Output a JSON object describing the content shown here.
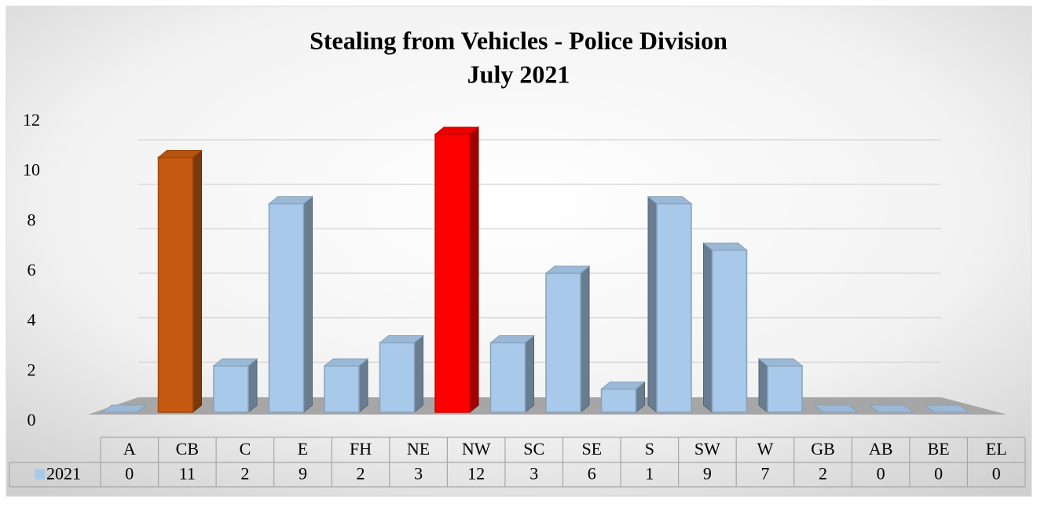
{
  "chart_data": {
    "type": "bar3d",
    "title": "Stealing from Vehicles - Police Division",
    "subtitle": "July 2021",
    "categories": [
      "A",
      "CB",
      "C",
      "E",
      "FH",
      "NE",
      "NW",
      "SC",
      "SE",
      "S",
      "SW",
      "W",
      "GB",
      "AB",
      "BE",
      "EL"
    ],
    "series": [
      {
        "name": "2021",
        "color": "#a9c9ea",
        "values": [
          0,
          11,
          2,
          9,
          2,
          3,
          12,
          3,
          6,
          1,
          9,
          7,
          2,
          0,
          0,
          0
        ],
        "colors": [
          "#a9c9ea",
          "#c55a11",
          "#a9c9ea",
          "#a9c9ea",
          "#a9c9ea",
          "#a9c9ea",
          "#ff0000",
          "#a9c9ea",
          "#a9c9ea",
          "#a9c9ea",
          "#a9c9ea",
          "#a9c9ea",
          "#a9c9ea",
          "#a9c9ea",
          "#a9c9ea",
          "#a9c9ea"
        ]
      }
    ],
    "ylim": [
      0,
      12
    ],
    "yticks": [
      0,
      2,
      4,
      6,
      8,
      10,
      12
    ],
    "grid": true,
    "data_table": true
  }
}
